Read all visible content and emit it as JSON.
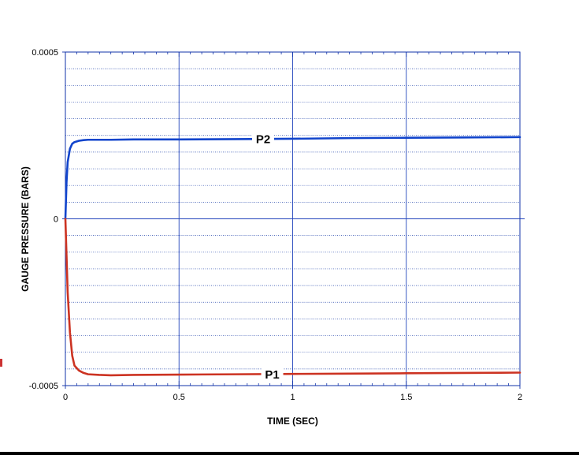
{
  "chart_data": {
    "type": "line",
    "title": "",
    "xlabel": "TIME (SEC)",
    "ylabel": "GAUGE PRESSURE (BARS)",
    "xlim": [
      0,
      2
    ],
    "ylim": [
      -0.0005,
      0.0005
    ],
    "x_ticks": [
      0,
      0.5,
      1,
      1.5,
      2
    ],
    "x_tick_labels": [
      "0",
      "0.5",
      "1",
      "1.5",
      "2"
    ],
    "y_ticks": [
      -0.0005,
      0,
      0.0005
    ],
    "y_tick_labels": [
      "-0.0005",
      "0",
      "0.0005"
    ],
    "grid": true,
    "series": [
      {
        "name": "P2",
        "color": "#1144cc",
        "x": [
          0,
          0.005,
          0.01,
          0.02,
          0.03,
          0.04,
          0.06,
          0.08,
          0.1,
          0.15,
          0.2,
          0.3,
          0.5,
          0.75,
          1.0,
          1.25,
          1.5,
          1.75,
          2.0
        ],
        "y": [
          0,
          0.00011,
          0.00017,
          0.00021,
          0.000225,
          0.00023,
          0.000234,
          0.000236,
          0.000237,
          0.000237,
          0.000237,
          0.000238,
          0.000238,
          0.000239,
          0.00024,
          0.000242,
          0.000243,
          0.000244,
          0.000245
        ]
      },
      {
        "name": "P1",
        "color": "#cc3322",
        "x": [
          0,
          0.005,
          0.01,
          0.02,
          0.03,
          0.04,
          0.06,
          0.08,
          0.1,
          0.15,
          0.2,
          0.3,
          0.5,
          0.75,
          1.0,
          1.25,
          1.5,
          1.75,
          2.0
        ],
        "y": [
          0,
          -0.00011,
          -0.00022,
          -0.00034,
          -0.00041,
          -0.00044,
          -0.000455,
          -0.000462,
          -0.000466,
          -0.000468,
          -0.000469,
          -0.000468,
          -0.000467,
          -0.000466,
          -0.000465,
          -0.000464,
          -0.000463,
          -0.000462,
          -0.000461
        ]
      }
    ],
    "annotations": [
      {
        "text": "P2",
        "series": "P2",
        "x": 0.87
      },
      {
        "text": "P1",
        "series": "P1",
        "x": 0.91
      }
    ]
  },
  "decor": {
    "left_marks": [
      {
        "color": "#cc3333"
      }
    ]
  }
}
